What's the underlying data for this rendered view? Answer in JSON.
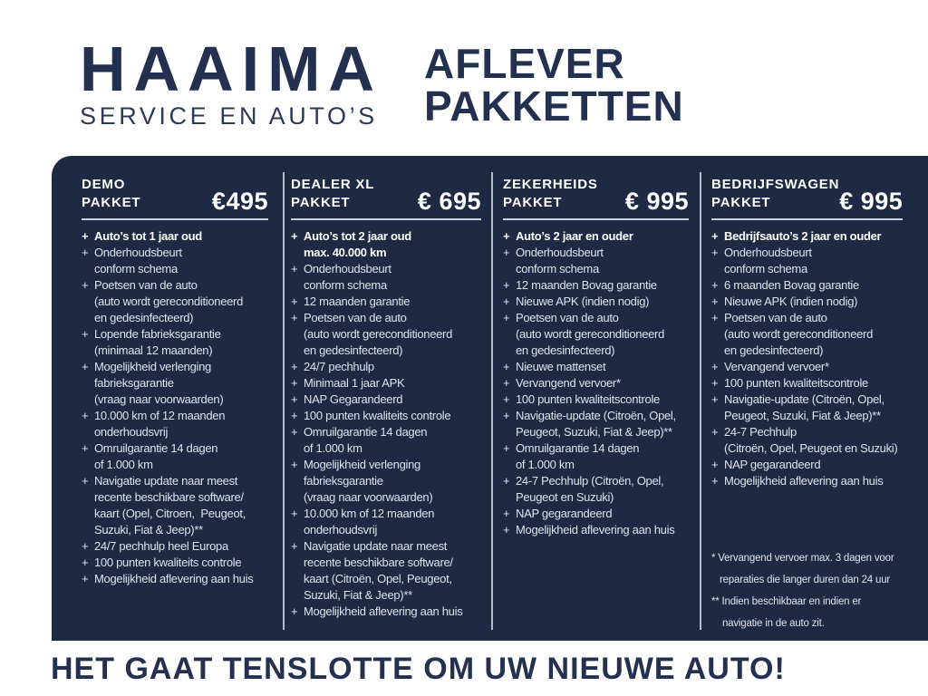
{
  "brand": {
    "name": "HAAIMA",
    "subtitle": "SERVICE EN AUTO’S"
  },
  "page_title": {
    "line1": "AFLEVER",
    "line2": "PAKKETTEN"
  },
  "colors": {
    "panel_bg": "#1e2a44",
    "brand_navy": "#233050",
    "panel_text": "#dde3ed",
    "panel_text_bold": "#ffffff",
    "divider": "#c6ccd7"
  },
  "packages": [
    {
      "name_line1": "DEMO",
      "name_line2": "PAKKET",
      "price": "€495",
      "items": [
        {
          "bold": true,
          "text": "Auto’s tot 1 jaar oud"
        },
        {
          "bold": false,
          "text": "Onderhoudsbeurt\nconform schema"
        },
        {
          "bold": false,
          "text": "Poetsen van de auto\n(auto wordt gereconditioneerd\nen gedesinfecteerd)"
        },
        {
          "bold": false,
          "text": "Lopende fabrieksgarantie\n(minimaal 12 maanden)"
        },
        {
          "bold": false,
          "text": "Mogelijkheid verlenging\nfabrieksgarantie\n(vraag naar voorwaarden)"
        },
        {
          "bold": false,
          "text": "10.000 km of 12 maanden\nonderhoudsvrij"
        },
        {
          "bold": false,
          "text": "Omruilgarantie 14 dagen\nof 1.000 km"
        },
        {
          "bold": false,
          "text": "Navigatie update naar meest\nrecente beschikbare software/\nkaart (Opel, Citroen,  Peugeot,\nSuzuki, Fiat & Jeep)**"
        },
        {
          "bold": false,
          "text": "24/7 pechhulp heel Europa"
        },
        {
          "bold": false,
          "text": "100 punten kwaliteits controle"
        },
        {
          "bold": false,
          "text": "Mogelijkheid aflevering aan huis"
        }
      ]
    },
    {
      "name_line1": "DEALER XL",
      "name_line2": "PAKKET",
      "price": "€ 695",
      "items": [
        {
          "bold": true,
          "text": "Auto’s tot 2 jaar oud\nmax. 40.000 km"
        },
        {
          "bold": false,
          "text": "Onderhoudsbeurt\nconform schema"
        },
        {
          "bold": false,
          "text": "12 maanden garantie"
        },
        {
          "bold": false,
          "text": "Poetsen van de auto\n(auto wordt gereconditioneerd\nen gedesinfecteerd)"
        },
        {
          "bold": false,
          "text": "24/7 pechhulp"
        },
        {
          "bold": false,
          "text": "Minimaal 1 jaar APK"
        },
        {
          "bold": false,
          "text": "NAP Gegarandeerd"
        },
        {
          "bold": false,
          "text": "100 punten kwaliteits controle"
        },
        {
          "bold": false,
          "text": "Omruilgarantie 14 dagen\nof 1.000 km"
        },
        {
          "bold": false,
          "text": "Mogelijkheid verlenging\nfabrieksgarantie\n(vraag naar voorwaarden)"
        },
        {
          "bold": false,
          "text": "10.000 km of 12 maanden\nonderhoudsvrij"
        },
        {
          "bold": false,
          "text": "Navigatie update naar meest\nrecente beschikbare software/\nkaart (Citroën, Opel, Peugeot,\nSuzuki, Fiat & Jeep)**"
        },
        {
          "bold": false,
          "text": "Mogelijkheid aflevering aan huis"
        }
      ]
    },
    {
      "name_line1": "ZEKERHEIDS",
      "name_line2": "PAKKET",
      "price": "€ 995",
      "items": [
        {
          "bold": true,
          "text": "Auto’s 2 jaar en ouder"
        },
        {
          "bold": false,
          "text": "Onderhoudsbeurt\nconform schema"
        },
        {
          "bold": false,
          "text": "12 maanden Bovag garantie"
        },
        {
          "bold": false,
          "text": "Nieuwe APK (indien nodig)"
        },
        {
          "bold": false,
          "text": "Poetsen van de auto\n(auto wordt gereconditioneerd\nen gedesinfecteerd)"
        },
        {
          "bold": false,
          "text": "Nieuwe mattenset"
        },
        {
          "bold": false,
          "text": "Vervangend vervoer*"
        },
        {
          "bold": false,
          "text": "100 punten kwaliteitscontrole"
        },
        {
          "bold": false,
          "text": "Navigatie-update (Citroën, Opel,\nPeugeot, Suzuki, Fiat & Jeep)**"
        },
        {
          "bold": false,
          "text": "Omruilgarantie 14 dagen\nof 1.000 km"
        },
        {
          "bold": false,
          "text": "24-7 Pechhulp (Citroën, Opel,\nPeugeot en Suzuki)"
        },
        {
          "bold": false,
          "text": "NAP gegarandeerd"
        },
        {
          "bold": false,
          "text": "Mogelijkheid aflevering aan huis"
        }
      ]
    },
    {
      "name_line1": "BEDRIJFSWAGEN",
      "name_line2": "PAKKET",
      "price": "€ 995",
      "items": [
        {
          "bold": true,
          "text": "Bedrijfsauto’s 2 jaar en ouder"
        },
        {
          "bold": false,
          "text": "Onderhoudsbeurt\nconform schema"
        },
        {
          "bold": false,
          "text": "6 maanden Bovag garantie"
        },
        {
          "bold": false,
          "text": "Nieuwe APK (indien nodig)"
        },
        {
          "bold": false,
          "text": "Poetsen van de auto\n(auto wordt gereconditioneerd\nen gedesinfecteerd)"
        },
        {
          "bold": false,
          "text": "Vervangend vervoer*"
        },
        {
          "bold": false,
          "text": "100 punten kwaliteitscontrole"
        },
        {
          "bold": false,
          "text": "Navigatie-update (Citroën, Opel,\nPeugeot, Suzuki, Fiat & Jeep)**"
        },
        {
          "bold": false,
          "text": "24-7 Pechhulp\n(Citroën, Opel, Peugeot en Suzuki)"
        },
        {
          "bold": false,
          "text": "NAP gegarandeerd"
        },
        {
          "bold": false,
          "text": "Mogelijkheid aflevering aan huis"
        }
      ]
    }
  ],
  "footnotes": [
    "* Vervangend vervoer max. 3 dagen voor\n   reparaties die langer duren dan 24 uur",
    "** Indien beschikbaar en indien er\n    navigatie in de auto zit."
  ],
  "footer_tagline": "HET GAAT TENSLOTTE OM UW NIEUWE AUTO!"
}
